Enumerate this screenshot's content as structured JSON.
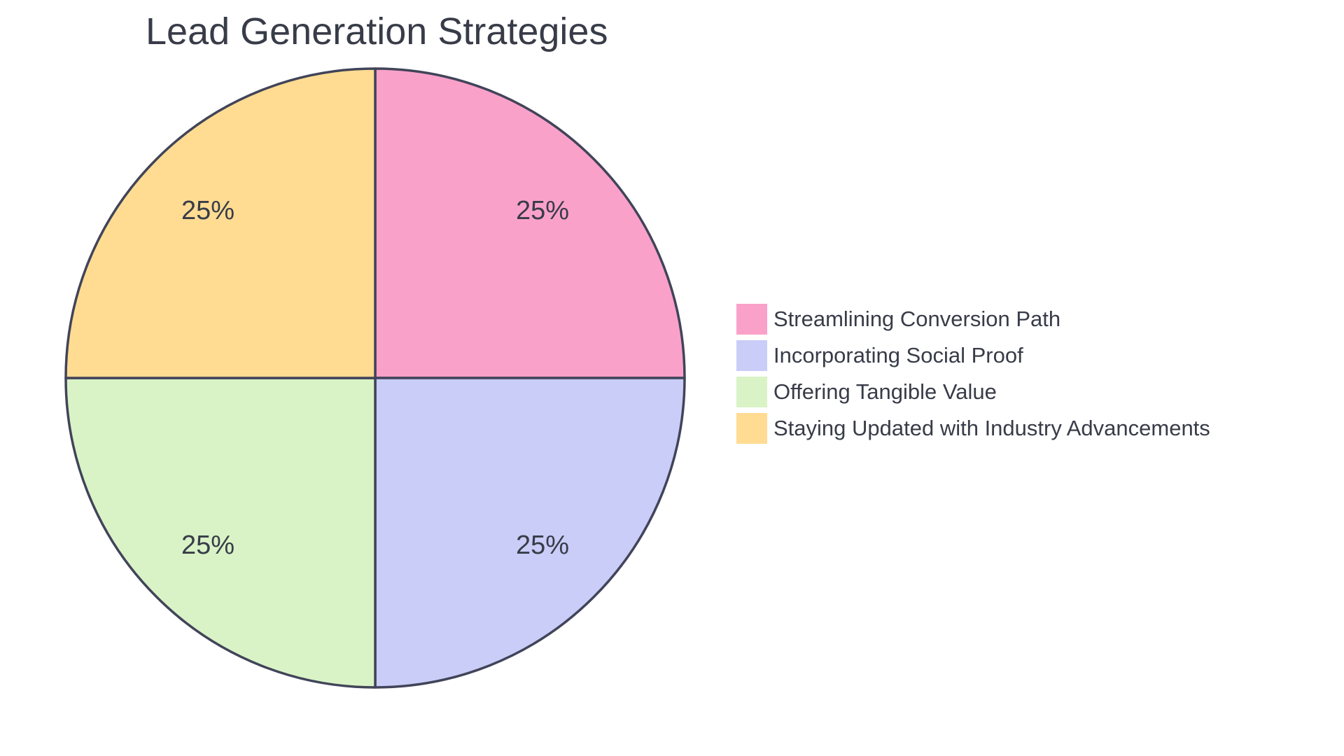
{
  "page": {
    "background_color": "#FFFFFF",
    "text_color": "#383C48"
  },
  "chart_data": {
    "type": "pie",
    "title": "Lead Generation Strategies",
    "legend_position": "right",
    "label_position": "inside",
    "start_angle": "top",
    "direction": "clockwise",
    "slice_border_color": "#414459",
    "slices": [
      {
        "label": "Streamlining Conversion Path",
        "value": 25,
        "pct_label": "25%",
        "color": "#FAA1CA"
      },
      {
        "label": "Incorporating Social Proof",
        "value": 25,
        "pct_label": "25%",
        "color": "#C9CDF7"
      },
      {
        "label": "Offering Tangible Value",
        "value": 25,
        "pct_label": "25%",
        "color": "#D9F3C6"
      },
      {
        "label": "Staying Updated with Industry Advancements",
        "value": 25,
        "pct_label": "25%",
        "color": "#FFDC92"
      }
    ]
  }
}
